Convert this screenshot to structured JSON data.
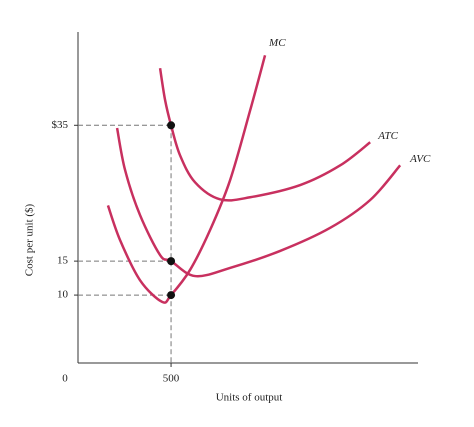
{
  "chart_data": {
    "type": "line",
    "xlabel": "Units of output",
    "ylabel": "Cost per unit ($)",
    "xlim": [
      0,
      1800
    ],
    "ylim": [
      0,
      48
    ],
    "xticks": [
      0,
      500
    ],
    "yticks": [
      {
        "value": 35,
        "label": "$35"
      },
      15,
      10
    ],
    "series": [
      {
        "name": "MC",
        "color": "#c8305f",
        "x": [
          161,
          226,
          333,
          452,
          500,
          602,
          710,
          817,
          925,
          1005
        ],
        "values": [
          23.2,
          18.1,
          12.2,
          9.0,
          10,
          13.7,
          19.6,
          26.9,
          37.2,
          45.3
        ]
      },
      {
        "name": "ATC",
        "color": "#c8305f",
        "x": [
          441,
          468,
          500,
          548,
          629,
          763,
          925,
          1194,
          1409,
          1570
        ],
        "values": [
          43.4,
          38.7,
          35,
          30.6,
          26.6,
          24.1,
          24.4,
          26.2,
          29.1,
          32.5
        ]
      },
      {
        "name": "AVC",
        "color": "#c8305f",
        "x": [
          210,
          253,
          333,
          441,
          500,
          629,
          817,
          1086,
          1355,
          1570,
          1731
        ],
        "values": [
          34.6,
          28.4,
          21.8,
          15.9,
          15,
          12.8,
          14.0,
          16.5,
          19.9,
          24.0,
          29.1
        ]
      }
    ],
    "points": [
      {
        "x": 500,
        "y": 35
      },
      {
        "x": 500,
        "y": 15
      },
      {
        "x": 500,
        "y": 10
      }
    ]
  }
}
